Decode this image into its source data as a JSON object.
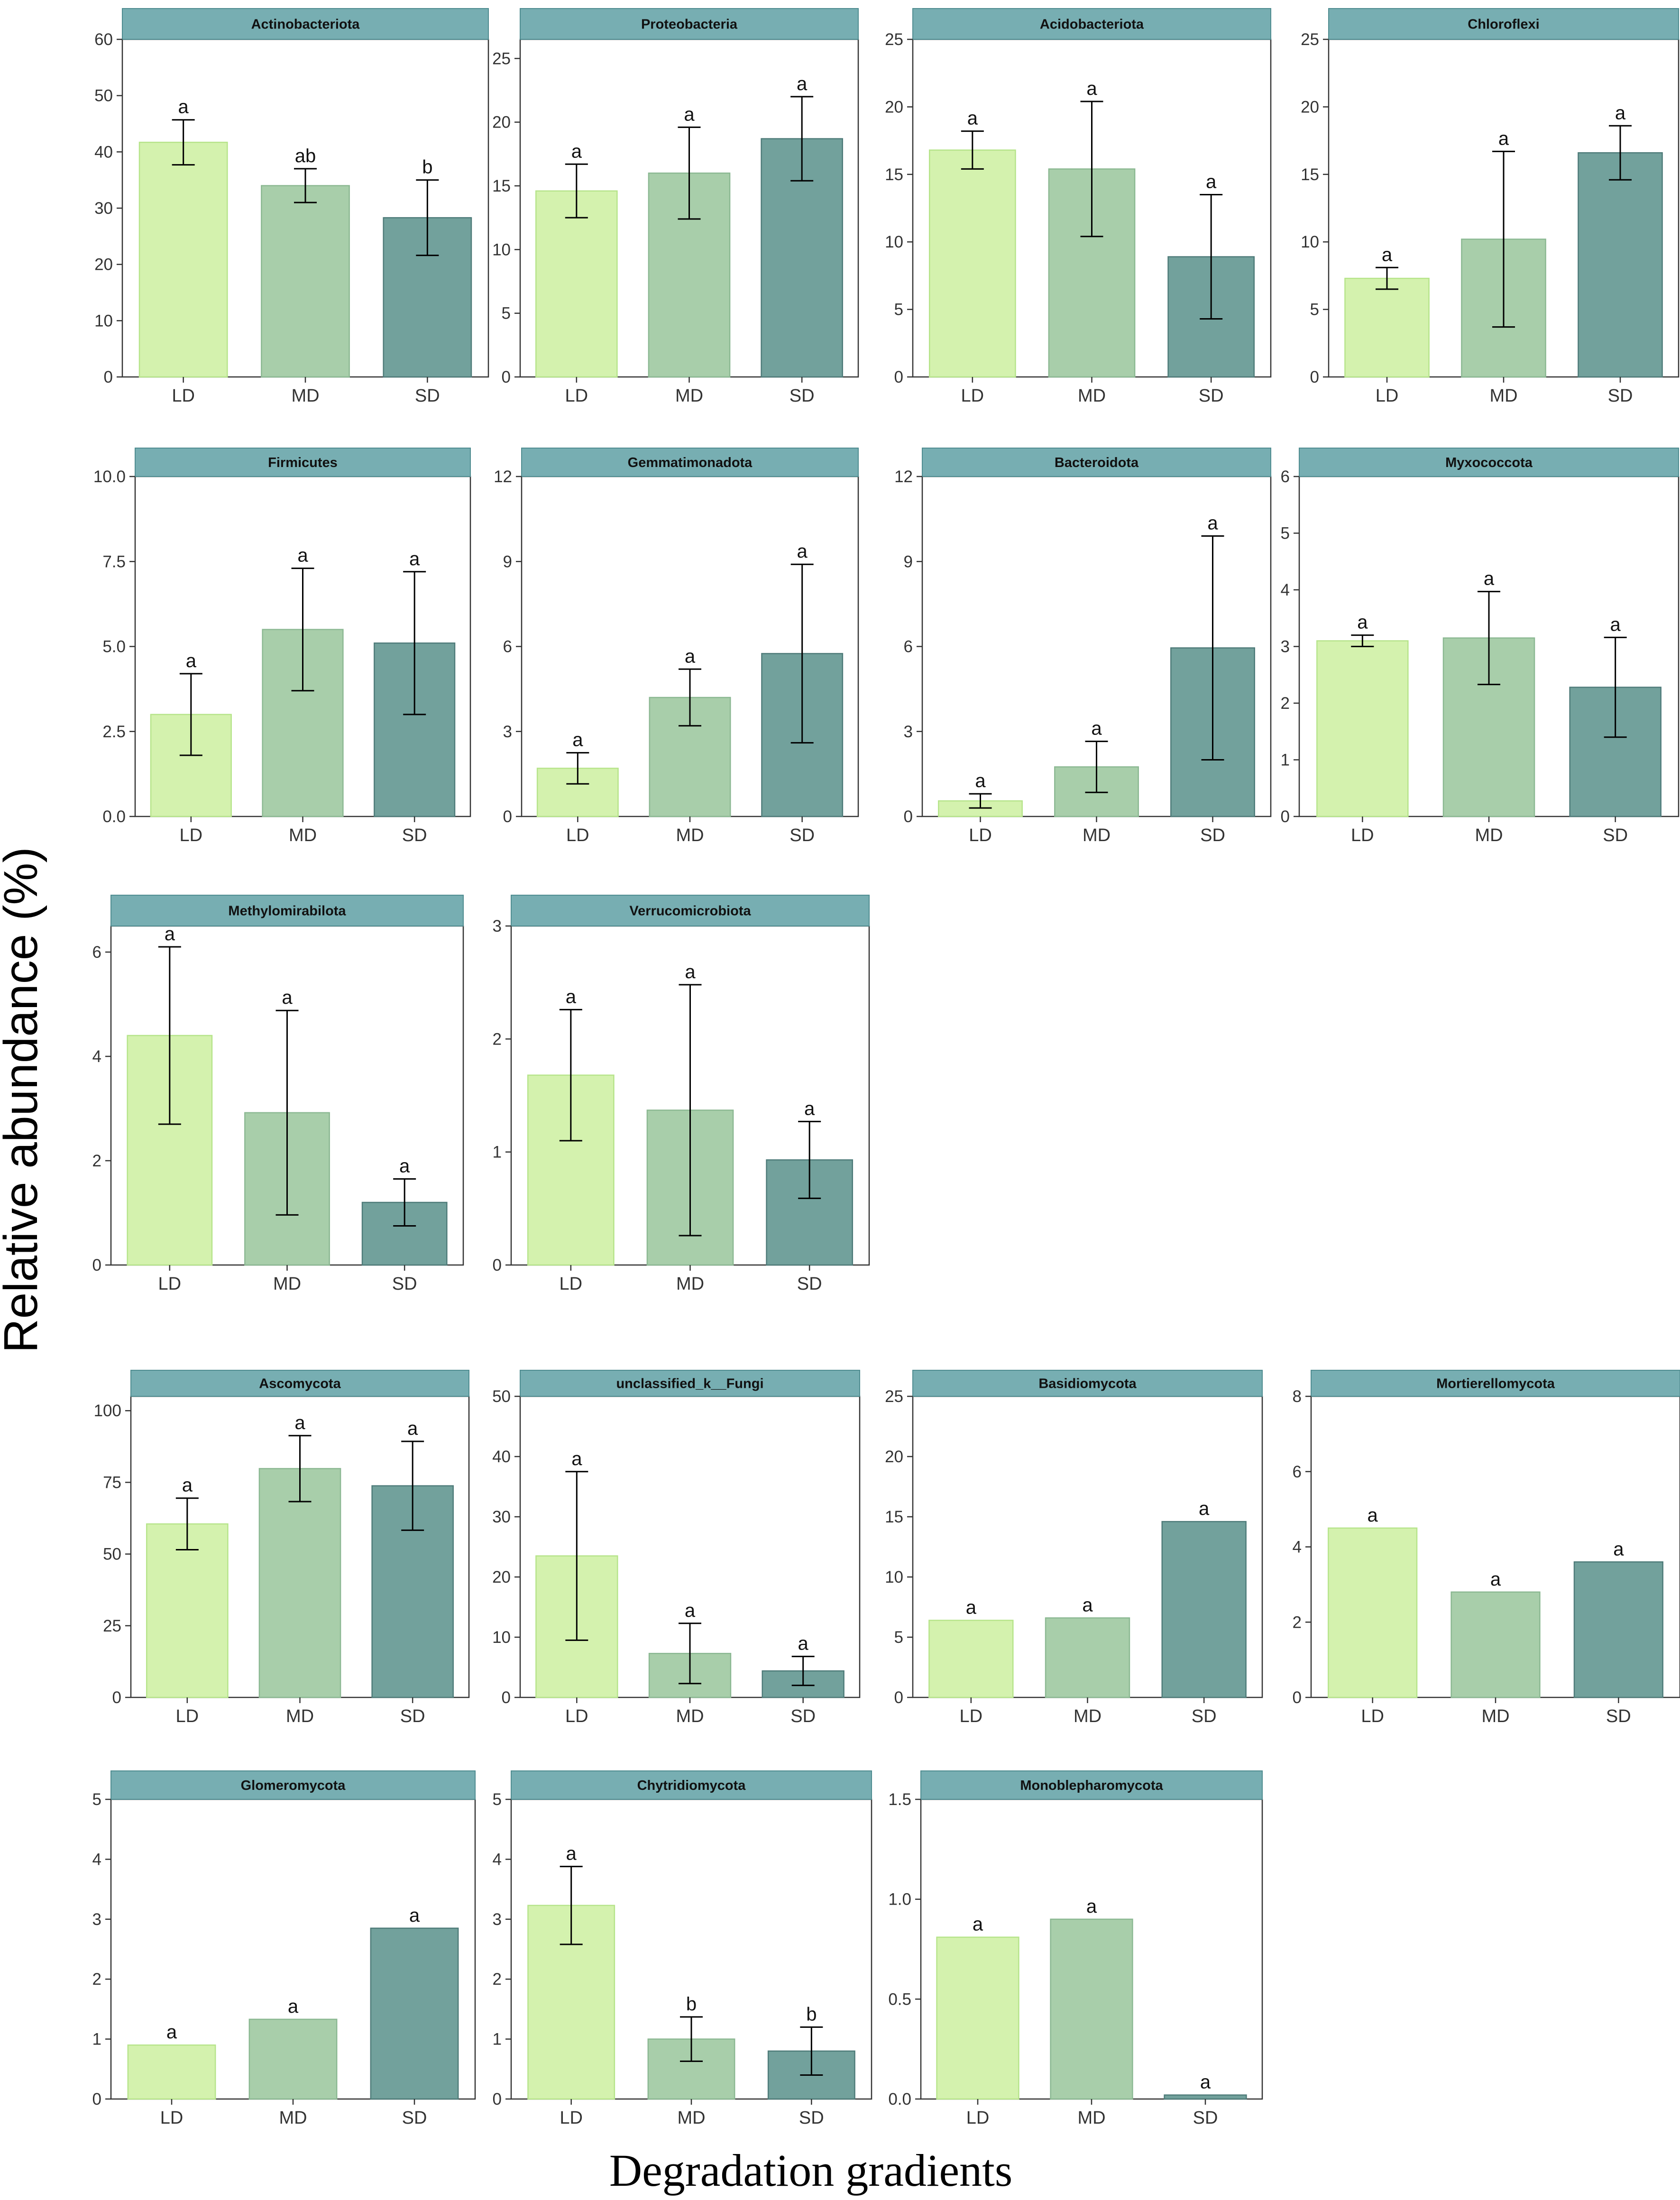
{
  "figure": {
    "y_title": "Relative abundance (%)",
    "x_title": "Degradation gradients"
  },
  "colors": {
    "LD": "#d4f2ae",
    "MD": "#a8ceaa",
    "SD": "#72a19c",
    "LD_border": "#b6e48a",
    "MD_border": "#8bb892",
    "SD_border": "#4e7b79",
    "strip": "#77aeb2",
    "strip_border": "#4f8c90",
    "axis": "#333333"
  },
  "chart_data": [
    {
      "type": "bar",
      "title": "Actinobacteriota",
      "categories": [
        "LD",
        "MD",
        "SD"
      ],
      "values": [
        41.7,
        34.0,
        28.3
      ],
      "errors": [
        4.0,
        3.0,
        6.7
      ],
      "letters": [
        "a",
        "ab",
        "b"
      ],
      "ylim": [
        0,
        60
      ],
      "yticks": [
        0,
        10,
        20,
        30,
        40,
        50,
        60
      ]
    },
    {
      "type": "bar",
      "title": "Proteobacteria",
      "categories": [
        "LD",
        "MD",
        "SD"
      ],
      "values": [
        14.6,
        16.0,
        18.7
      ],
      "errors": [
        2.1,
        3.6,
        3.3
      ],
      "letters": [
        "a",
        "a",
        "a"
      ],
      "ylim": [
        0,
        26.5
      ],
      "yticks": [
        0,
        5,
        10,
        15,
        20,
        25
      ]
    },
    {
      "type": "bar",
      "title": "Acidobacteriota",
      "categories": [
        "LD",
        "MD",
        "SD"
      ],
      "values": [
        16.8,
        15.4,
        8.9
      ],
      "errors": [
        1.4,
        5.0,
        4.6
      ],
      "letters": [
        "a",
        "a",
        "a"
      ],
      "ylim": [
        0,
        25
      ],
      "yticks": [
        0,
        5,
        10,
        15,
        20,
        25
      ]
    },
    {
      "type": "bar",
      "title": "Chloroflexi",
      "categories": [
        "LD",
        "MD",
        "SD"
      ],
      "values": [
        7.3,
        10.2,
        16.6
      ],
      "errors": [
        0.8,
        6.5,
        2.0
      ],
      "letters": [
        "a",
        "a",
        "a"
      ],
      "ylim": [
        0,
        25
      ],
      "yticks": [
        0,
        5,
        10,
        15,
        20,
        25
      ]
    },
    {
      "type": "bar",
      "title": "Firmicutes",
      "categories": [
        "LD",
        "MD",
        "SD"
      ],
      "values": [
        3.0,
        5.5,
        5.1
      ],
      "errors": [
        1.2,
        1.8,
        2.1
      ],
      "letters": [
        "a",
        "a",
        "a"
      ],
      "ylim": [
        0,
        10
      ],
      "yticks": [
        0.0,
        2.5,
        5.0,
        7.5,
        10.0
      ],
      "decimals": 1
    },
    {
      "type": "bar",
      "title": "Gemmatimonadota",
      "categories": [
        "LD",
        "MD",
        "SD"
      ],
      "values": [
        1.7,
        4.2,
        5.75
      ],
      "errors": [
        0.55,
        1.0,
        3.15
      ],
      "letters": [
        "a",
        "a",
        "a"
      ],
      "ylim": [
        0,
        12
      ],
      "yticks": [
        0,
        3,
        6,
        9,
        12
      ]
    },
    {
      "type": "bar",
      "title": "Bacteroidota",
      "categories": [
        "LD",
        "MD",
        "SD"
      ],
      "values": [
        0.55,
        1.75,
        5.95
      ],
      "errors": [
        0.25,
        0.9,
        3.95
      ],
      "letters": [
        "a",
        "a",
        "a"
      ],
      "ylim": [
        0,
        12
      ],
      "yticks": [
        0,
        3,
        6,
        9,
        12
      ]
    },
    {
      "type": "bar",
      "title": "Myxococcota",
      "categories": [
        "LD",
        "MD",
        "SD"
      ],
      "values": [
        3.1,
        3.15,
        2.28
      ],
      "errors": [
        0.1,
        0.82,
        0.88
      ],
      "letters": [
        "a",
        "a",
        "a"
      ],
      "ylim": [
        0,
        6
      ],
      "yticks": [
        0,
        1,
        2,
        3,
        4,
        5,
        6
      ]
    },
    {
      "type": "bar",
      "title": "Methylomirabilota",
      "categories": [
        "LD",
        "MD",
        "SD"
      ],
      "values": [
        4.4,
        2.92,
        1.2
      ],
      "errors": [
        1.7,
        1.96,
        0.45
      ],
      "letters": [
        "a",
        "a",
        "a"
      ],
      "ylim": [
        0,
        6.5
      ],
      "yticks": [
        0,
        2,
        4,
        6
      ]
    },
    {
      "type": "bar",
      "title": "Verrucomicrobiota",
      "categories": [
        "LD",
        "MD",
        "SD"
      ],
      "values": [
        1.68,
        1.37,
        0.93
      ],
      "errors": [
        0.58,
        1.11,
        0.34
      ],
      "letters": [
        "a",
        "a",
        "a"
      ],
      "ylim": [
        0,
        3
      ],
      "yticks": [
        0,
        1,
        2,
        3
      ]
    },
    {
      "type": "bar",
      "title": "Ascomycota",
      "categories": [
        "LD",
        "MD",
        "SD"
      ],
      "values": [
        60.5,
        79.8,
        73.8
      ],
      "errors": [
        9.0,
        11.5,
        15.5
      ],
      "letters": [
        "a",
        "a",
        "a"
      ],
      "ylim": [
        0,
        105
      ],
      "yticks": [
        0,
        25,
        50,
        75,
        100
      ]
    },
    {
      "type": "bar",
      "title": "unclassified_k__Fungi",
      "categories": [
        "LD",
        "MD",
        "SD"
      ],
      "values": [
        23.5,
        7.3,
        4.4
      ],
      "errors": [
        14.0,
        5.0,
        2.4
      ],
      "letters": [
        "a",
        "a",
        "a"
      ],
      "ylim": [
        0,
        50
      ],
      "yticks": [
        0,
        10,
        20,
        30,
        40,
        50
      ]
    },
    {
      "type": "bar",
      "title": "Basidiomycota",
      "categories": [
        "LD",
        "MD",
        "SD"
      ],
      "values": [
        6.4,
        6.6,
        14.6
      ],
      "errors": [
        0,
        0,
        0
      ],
      "letters": [
        "a",
        "a",
        "a"
      ],
      "ylim": [
        0,
        25
      ],
      "yticks": [
        0,
        5,
        10,
        15,
        20,
        25
      ]
    },
    {
      "type": "bar",
      "title": "Mortierellomycota",
      "categories": [
        "LD",
        "MD",
        "SD"
      ],
      "values": [
        4.5,
        2.8,
        3.6
      ],
      "errors": [
        0,
        0,
        0
      ],
      "letters": [
        "a",
        "a",
        "a"
      ],
      "ylim": [
        0,
        8
      ],
      "yticks": [
        0,
        2,
        4,
        6,
        8
      ]
    },
    {
      "type": "bar",
      "title": "Glomeromycota",
      "categories": [
        "LD",
        "MD",
        "SD"
      ],
      "values": [
        0.9,
        1.33,
        2.85
      ],
      "errors": [
        0,
        0,
        0
      ],
      "letters": [
        "a",
        "a",
        "a"
      ],
      "ylim": [
        0,
        5
      ],
      "yticks": [
        0,
        1,
        2,
        3,
        4,
        5
      ]
    },
    {
      "type": "bar",
      "title": "Chytridiomycota",
      "categories": [
        "LD",
        "MD",
        "SD"
      ],
      "values": [
        3.23,
        1.0,
        0.8
      ],
      "errors": [
        0.65,
        0.37,
        0.4
      ],
      "letters": [
        "a",
        "b",
        "b"
      ],
      "ylim": [
        0,
        5
      ],
      "yticks": [
        0,
        1,
        2,
        3,
        4,
        5
      ]
    },
    {
      "type": "bar",
      "title": "Monoblepharomycota",
      "categories": [
        "LD",
        "MD",
        "SD"
      ],
      "values": [
        0.81,
        0.9,
        0.02
      ],
      "errors": [
        0,
        0,
        0
      ],
      "letters": [
        "a",
        "a",
        "a"
      ],
      "ylim": [
        0,
        1.5
      ],
      "yticks": [
        0.0,
        0.5,
        1.0,
        1.5
      ],
      "decimals": 1
    }
  ]
}
